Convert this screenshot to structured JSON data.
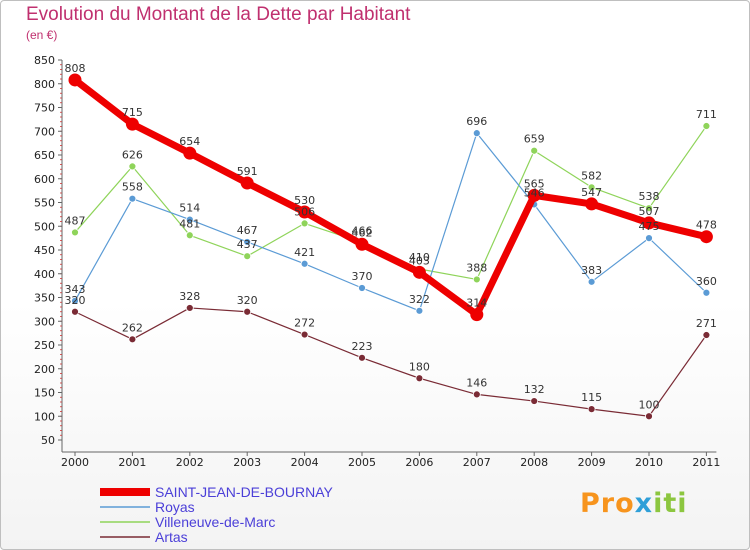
{
  "chart_data": {
    "type": "line",
    "title": "Evolution du Montant de la Dette par Habitant",
    "subtitle": "(en €)",
    "x": [
      "2000",
      "2001",
      "2002",
      "2003",
      "2004",
      "2005",
      "2006",
      "2007",
      "2008",
      "2009",
      "2010",
      "2011"
    ],
    "ylim": [
      50,
      850
    ],
    "yticks": [
      50,
      100,
      150,
      200,
      250,
      300,
      350,
      400,
      450,
      500,
      550,
      600,
      650,
      700,
      750,
      800,
      850
    ],
    "grid": false,
    "legend_position": "bottom-left",
    "series": [
      {
        "name": "SAINT-JEAN-DE-BOURNAY",
        "color": "#ee0000",
        "values": [
          808,
          715,
          654,
          591,
          530,
          462,
          403,
          314,
          565,
          547,
          507,
          478
        ]
      },
      {
        "name": "Royas",
        "color": "#5b9bd5",
        "values": [
          343,
          558,
          514,
          467,
          421,
          370,
          322,
          696,
          546,
          383,
          475,
          360
        ]
      },
      {
        "name": "Villeneuve-de-Marc",
        "color": "#8fd45a",
        "values": [
          487,
          626,
          481,
          437,
          506,
          466,
          410,
          388,
          659,
          582,
          538,
          711
        ]
      },
      {
        "name": "Artas",
        "color": "#7a2b35",
        "values": [
          320,
          262,
          328,
          320,
          272,
          223,
          180,
          146,
          132,
          115,
          100,
          271
        ]
      }
    ]
  },
  "brand": {
    "p1": "Pro",
    "p2": "x",
    "p3": "iti"
  }
}
